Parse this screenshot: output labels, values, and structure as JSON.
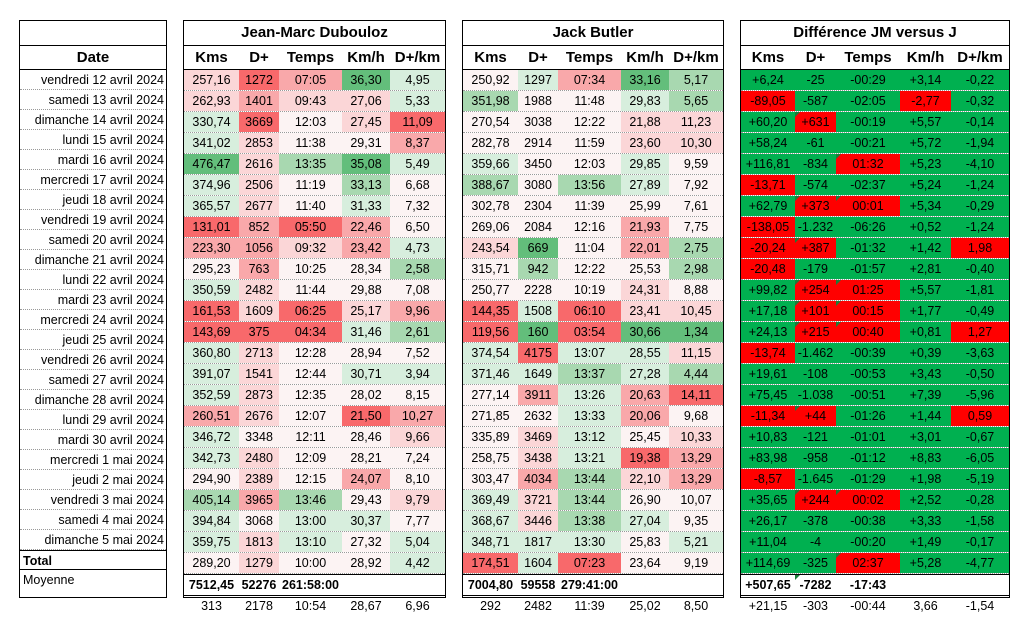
{
  "date_block": {
    "header": "Date",
    "total_label": "Total",
    "average_label": "Moyenne"
  },
  "blocks": [
    {
      "title": "Jean-Marc Dubouloz",
      "headers": [
        "Kms",
        "D+",
        "Temps",
        "Km/h",
        "D+/km"
      ]
    },
    {
      "title": "Jack Butler",
      "headers": [
        "Kms",
        "D+",
        "Temps",
        "Km/h",
        "D+/km"
      ]
    },
    {
      "title": "Différence JM versus J",
      "headers": [
        "Kms",
        "D+",
        "Temps",
        "Km/h",
        "D+/km"
      ]
    }
  ],
  "dates": [
    "vendredi 12 avril 2024",
    "samedi 13 avril 2024",
    "dimanche 14 avril 2024",
    "lundi 15 avril 2024",
    "mardi 16 avril 2024",
    "mercredi 17 avril 2024",
    "jeudi 18 avril 2024",
    "vendredi 19 avril 2024",
    "samedi 20 avril 2024",
    "dimanche 21 avril 2024",
    "lundi 22 avril 2024",
    "mardi 23 avril 2024",
    "mercredi 24 avril 2024",
    "jeudi 25 avril 2024",
    "vendredi 26 avril 2024",
    "samedi 27 avril 2024",
    "dimanche 28 avril 2024",
    "lundi 29 avril 2024",
    "mardi 30 avril 2024",
    "mercredi 1 mai 2024",
    "jeudi 2 mai 2024",
    "vendredi 3 mai 2024",
    "samedi 4 mai 2024",
    "dimanche 5 mai 2024"
  ],
  "jm_rows": [
    [
      "257,16",
      "1272",
      "07:05",
      "36,30",
      "4,95"
    ],
    [
      "262,93",
      "1401",
      "09:43",
      "27,06",
      "5,33"
    ],
    [
      "330,74",
      "3669",
      "12:03",
      "27,45",
      "11,09"
    ],
    [
      "341,02",
      "2853",
      "11:38",
      "29,31",
      "8,37"
    ],
    [
      "476,47",
      "2616",
      "13:35",
      "35,08",
      "5,49"
    ],
    [
      "374,96",
      "2506",
      "11:19",
      "33,13",
      "6,68"
    ],
    [
      "365,57",
      "2677",
      "11:40",
      "31,33",
      "7,32"
    ],
    [
      "131,01",
      "852",
      "05:50",
      "22,46",
      "6,50"
    ],
    [
      "223,30",
      "1056",
      "09:32",
      "23,42",
      "4,73"
    ],
    [
      "295,23",
      "763",
      "10:25",
      "28,34",
      "2,58"
    ],
    [
      "350,59",
      "2482",
      "11:44",
      "29,88",
      "7,08"
    ],
    [
      "161,53",
      "1609",
      "06:25",
      "25,17",
      "9,96"
    ],
    [
      "143,69",
      "375",
      "04:34",
      "31,46",
      "2,61"
    ],
    [
      "360,80",
      "2713",
      "12:28",
      "28,94",
      "7,52"
    ],
    [
      "391,07",
      "1541",
      "12:44",
      "30,71",
      "3,94"
    ],
    [
      "352,59",
      "2873",
      "12:35",
      "28,02",
      "8,15"
    ],
    [
      "260,51",
      "2676",
      "12:07",
      "21,50",
      "10,27"
    ],
    [
      "346,72",
      "3348",
      "12:11",
      "28,46",
      "9,66"
    ],
    [
      "342,73",
      "2480",
      "12:09",
      "28,21",
      "7,24"
    ],
    [
      "294,90",
      "2389",
      "12:15",
      "24,07",
      "8,10"
    ],
    [
      "405,14",
      "3965",
      "13:46",
      "29,43",
      "9,79"
    ],
    [
      "394,84",
      "3068",
      "13:00",
      "30,37",
      "7,77"
    ],
    [
      "359,75",
      "1813",
      "13:10",
      "27,32",
      "5,04"
    ],
    [
      "289,20",
      "1279",
      "10:00",
      "28,92",
      "4,42"
    ]
  ],
  "jb_rows": [
    [
      "250,92",
      "1297",
      "07:34",
      "33,16",
      "5,17"
    ],
    [
      "351,98",
      "1988",
      "11:48",
      "29,83",
      "5,65"
    ],
    [
      "270,54",
      "3038",
      "12:22",
      "21,88",
      "11,23"
    ],
    [
      "282,78",
      "2914",
      "11:59",
      "23,60",
      "10,30"
    ],
    [
      "359,66",
      "3450",
      "12:03",
      "29,85",
      "9,59"
    ],
    [
      "388,67",
      "3080",
      "13:56",
      "27,89",
      "7,92"
    ],
    [
      "302,78",
      "2304",
      "11:39",
      "25,99",
      "7,61"
    ],
    [
      "269,06",
      "2084",
      "12:16",
      "21,93",
      "7,75"
    ],
    [
      "243,54",
      "669",
      "11:04",
      "22,01",
      "2,75"
    ],
    [
      "315,71",
      "942",
      "12:22",
      "25,53",
      "2,98"
    ],
    [
      "250,77",
      "2228",
      "10:19",
      "24,31",
      "8,88"
    ],
    [
      "144,35",
      "1508",
      "06:10",
      "23,41",
      "10,45"
    ],
    [
      "119,56",
      "160",
      "03:54",
      "30,66",
      "1,34"
    ],
    [
      "374,54",
      "4175",
      "13:07",
      "28,55",
      "11,15"
    ],
    [
      "371,46",
      "1649",
      "13:37",
      "27,28",
      "4,44"
    ],
    [
      "277,14",
      "3911",
      "13:26",
      "20,63",
      "14,11"
    ],
    [
      "271,85",
      "2632",
      "13:33",
      "20,06",
      "9,68"
    ],
    [
      "335,89",
      "3469",
      "13:12",
      "25,45",
      "10,33"
    ],
    [
      "258,75",
      "3438",
      "13:21",
      "19,38",
      "13,29"
    ],
    [
      "303,47",
      "4034",
      "13:44",
      "22,10",
      "13,29"
    ],
    [
      "369,49",
      "3721",
      "13:44",
      "26,90",
      "10,07"
    ],
    [
      "368,67",
      "3446",
      "13:38",
      "27,04",
      "9,35"
    ],
    [
      "348,71",
      "1817",
      "13:30",
      "25,83",
      "5,21"
    ],
    [
      "174,51",
      "1604",
      "07:23",
      "23,64",
      "9,19"
    ]
  ],
  "diff_rows": [
    [
      "+6,24",
      "-25",
      "-00:29",
      "+3,14",
      "-0,22"
    ],
    [
      "-89,05",
      "-587",
      "-02:05",
      "-2,77",
      "-0,32"
    ],
    [
      "+60,20",
      "+631",
      "-00:19",
      "+5,57",
      "-0,14"
    ],
    [
      "+58,24",
      "-61",
      "-00:21",
      "+5,72",
      "-1,94"
    ],
    [
      "+116,81",
      "-834",
      "01:32",
      "+5,23",
      "-4,10"
    ],
    [
      "-13,71",
      "-574",
      "-02:37",
      "+5,24",
      "-1,24"
    ],
    [
      "+62,79",
      "+373",
      "00:01",
      "+5,34",
      "-0,29"
    ],
    [
      "-138,05",
      "-1.232",
      "-06:26",
      "+0,52",
      "-1,24"
    ],
    [
      "-20,24",
      "+387",
      "-01:32",
      "+1,42",
      "1,98"
    ],
    [
      "-20,48",
      "-179",
      "-01:57",
      "+2,81",
      "-0,40"
    ],
    [
      "+99,82",
      "+254",
      "01:25",
      "+5,57",
      "-1,81"
    ],
    [
      "+17,18",
      "+101",
      "00:15",
      "+1,77",
      "-0,49"
    ],
    [
      "+24,13",
      "+215",
      "00:40",
      "+0,81",
      "1,27"
    ],
    [
      "-13,74",
      "-1.462",
      "-00:39",
      "+0,39",
      "-3,63"
    ],
    [
      "+19,61",
      "-108",
      "-00:53",
      "+3,43",
      "-0,50"
    ],
    [
      "+75,45",
      "-1.038",
      "-00:51",
      "+7,39",
      "-5,96"
    ],
    [
      "-11,34",
      "+44",
      "-01:26",
      "+1,44",
      "0,59"
    ],
    [
      "+10,83",
      "-121",
      "-01:01",
      "+3,01",
      "-0,67"
    ],
    [
      "+83,98",
      "-958",
      "-01:12",
      "+8,83",
      "-6,05"
    ],
    [
      "-8,57",
      "-1.645",
      "-01:29",
      "+1,98",
      "-5,19"
    ],
    [
      "+35,65",
      "+244",
      "00:02",
      "+2,52",
      "-0,28"
    ],
    [
      "+26,17",
      "-378",
      "-00:38",
      "+3,33",
      "-1,58"
    ],
    [
      "+11,04",
      "-4",
      "-00:20",
      "+1,49",
      "-0,17"
    ],
    [
      "+114,69",
      "-325",
      "02:37",
      "+5,28",
      "-4,77"
    ]
  ],
  "jm_total": [
    "7512,45",
    "52276",
    "261:58:00",
    "",
    ""
  ],
  "jm_avg": [
    "313",
    "2178",
    "10:54",
    "28,67",
    "6,96"
  ],
  "jb_total": [
    "7004,80",
    "59558",
    "279:41:00",
    "",
    ""
  ],
  "jb_avg": [
    "292",
    "2482",
    "11:39",
    "25,02",
    "8,50"
  ],
  "diff_total": [
    "+507,65",
    "-7282",
    "-17:43",
    "",
    ""
  ],
  "diff_avg": [
    "+21,15",
    "-303",
    "-00:44",
    "3,66",
    "-1,54"
  ],
  "colors": {
    "green_dark": "#63be7b",
    "green_mid": "#a8d8b0",
    "green_light": "#d7eedd",
    "red_dark": "#f8696b",
    "red_mid": "#f9a8aa",
    "red_light": "#fbd6d7",
    "neutral": "#fcf3f3",
    "diff_green": "#00b050",
    "diff_red": "#ff0000"
  }
}
